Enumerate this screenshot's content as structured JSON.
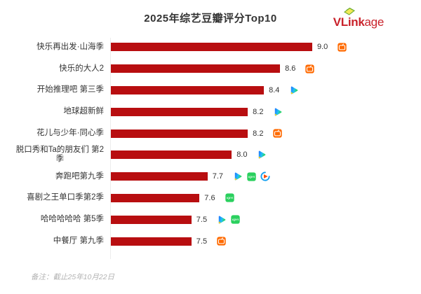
{
  "header": {
    "title": "2025年综艺豆瓣评分Top10",
    "logo": {
      "bold": "VLink",
      "light": "age",
      "color": "#c9222b"
    }
  },
  "footer": {
    "note": "备注：截止25年10月22日"
  },
  "colors": {
    "bar": "#b80e10",
    "axis_line": "#ececec",
    "label_text": "#333333",
    "value_text": "#333333",
    "footer_text": "#b3b3b3",
    "mgtv_orange": "#ff6a00",
    "iqiyi_green": "#2ad05e",
    "youku_blue": "#14a0f0",
    "youku_orange": "#ff4a00",
    "tencent_blue": "#1f7fff",
    "tencent_green": "#2bd467",
    "tencent_yellow": "#ffd215"
  },
  "platform_names": {
    "mgtv": "芒果TV",
    "tencent": "腾讯视频",
    "iqiyi": "爱奇艺",
    "youku": "优酷"
  },
  "chart_data": {
    "type": "bar",
    "orientation": "horizontal",
    "title": "2025年综艺豆瓣评分Top10",
    "categories": [
      "快乐再出发·山海季",
      "快乐的大人2",
      "开始推理吧 第三季",
      "地球超新鲜",
      "花儿与少年·同心季",
      "脱口秀和Ta的朋友们 第2\n季",
      "奔跑吧第九季",
      "喜剧之王单口季第2季",
      "哈哈哈哈哈 第5季",
      "中餐厅 第九季"
    ],
    "values": [
      9.0,
      8.6,
      8.4,
      8.2,
      8.2,
      8.0,
      7.7,
      7.6,
      7.5,
      7.5
    ],
    "platforms_per_item": [
      [
        "mgtv"
      ],
      [
        "mgtv"
      ],
      [
        "tencent"
      ],
      [
        "tencent"
      ],
      [
        "mgtv"
      ],
      [
        "tencent"
      ],
      [
        "tencent",
        "iqiyi",
        "youku"
      ],
      [
        "iqiyi"
      ],
      [
        "tencent",
        "iqiyi"
      ],
      [
        "mgtv"
      ]
    ],
    "xlim": [
      6.5,
      9.0
    ],
    "bar_color": "#b80e10",
    "value_labels_shown": true,
    "grid": false,
    "legend": false
  }
}
